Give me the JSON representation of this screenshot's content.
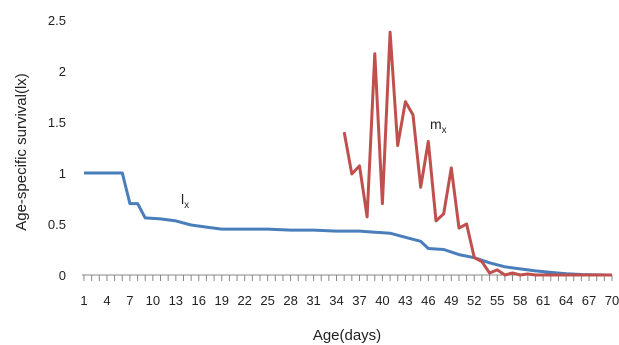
{
  "chart_data": {
    "type": "line",
    "xlabel": "Age(days)",
    "ylabel": "Age-specific survival(lx)",
    "ylim": [
      0,
      2.5
    ],
    "yticks": [
      "0",
      "0.5",
      "1",
      "1.5",
      "2",
      "2.5"
    ],
    "xlim": [
      1,
      70
    ],
    "xticks": [
      1,
      4,
      7,
      10,
      13,
      16,
      19,
      22,
      25,
      28,
      31,
      34,
      37,
      40,
      43,
      46,
      49,
      52,
      55,
      58,
      61,
      64,
      67,
      70
    ],
    "grid": false,
    "legend": "none",
    "series": [
      {
        "name": "lx",
        "label_main": "l",
        "label_sub": "x",
        "color": "#4a7ebb",
        "points": [
          [
            1,
            1.0
          ],
          [
            6,
            1.0
          ],
          [
            7,
            0.7
          ],
          [
            8,
            0.7
          ],
          [
            9,
            0.56
          ],
          [
            11,
            0.55
          ],
          [
            13,
            0.53
          ],
          [
            15,
            0.49
          ],
          [
            17,
            0.47
          ],
          [
            19,
            0.45
          ],
          [
            25,
            0.45
          ],
          [
            28,
            0.44
          ],
          [
            31,
            0.44
          ],
          [
            34,
            0.43
          ],
          [
            37,
            0.43
          ],
          [
            39,
            0.42
          ],
          [
            41,
            0.41
          ],
          [
            43,
            0.37
          ],
          [
            45,
            0.33
          ],
          [
            46,
            0.26
          ],
          [
            48,
            0.25
          ],
          [
            50,
            0.2
          ],
          [
            52,
            0.17
          ],
          [
            54,
            0.12
          ],
          [
            55,
            0.1
          ],
          [
            56,
            0.08
          ],
          [
            58,
            0.06
          ],
          [
            60,
            0.04
          ],
          [
            62,
            0.025
          ],
          [
            64,
            0.012
          ],
          [
            66,
            0.005
          ],
          [
            68,
            0.002
          ],
          [
            70,
            0.0
          ]
        ]
      },
      {
        "name": "mx",
        "label_main": "m",
        "label_sub": "x",
        "color": "#c0504d",
        "points": [
          [
            35,
            1.4
          ],
          [
            36,
            0.99
          ],
          [
            37,
            1.07
          ],
          [
            38,
            0.57
          ],
          [
            39,
            2.17
          ],
          [
            40,
            0.7
          ],
          [
            41,
            2.38
          ],
          [
            42,
            1.27
          ],
          [
            43,
            1.7
          ],
          [
            44,
            1.57
          ],
          [
            45,
            0.86
          ],
          [
            46,
            1.31
          ],
          [
            47,
            0.53
          ],
          [
            48,
            0.6
          ],
          [
            49,
            1.05
          ],
          [
            50,
            0.46
          ],
          [
            51,
            0.5
          ],
          [
            52,
            0.17
          ],
          [
            53,
            0.13
          ],
          [
            54,
            0.02
          ],
          [
            55,
            0.05
          ],
          [
            56,
            0.0
          ],
          [
            57,
            0.02
          ],
          [
            58,
            0.0
          ],
          [
            59,
            0.01
          ],
          [
            60,
            0.0
          ],
          [
            64,
            0.0
          ],
          [
            70,
            0.0
          ]
        ]
      }
    ]
  }
}
